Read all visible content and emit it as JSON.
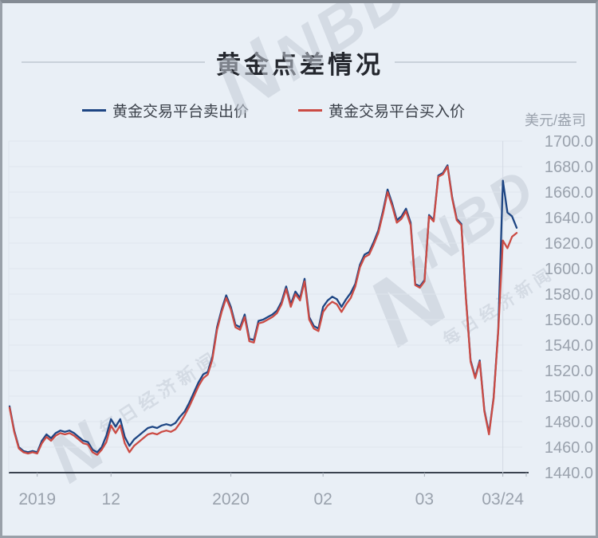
{
  "page": {
    "background": "#e9eff6",
    "frame_border": "#99a0a9"
  },
  "header": {
    "title": "黄金点差情况"
  },
  "watermark": {
    "brand": "NBD",
    "letter": "N",
    "name": "每日经济新闻"
  },
  "y_axis_unit": "美元/盎司",
  "chart_data": {
    "type": "line",
    "title": "黄金点差情况",
    "ylabel": "美元/盎司",
    "xlabel": "",
    "ylim": [
      1440,
      1700
    ],
    "grid": "horizontal",
    "legend_position": "top",
    "colors": {
      "grid_line": "#dee5ed",
      "axis_line": "#3a424f",
      "split_line": "#d3dae3",
      "tick_label": "#9aa2ad"
    },
    "y_ticks": [
      "1700.0",
      "1680.0",
      "1660.0",
      "1640.0",
      "1620.0",
      "1600.0",
      "1580.0",
      "1560.0",
      "1540.0",
      "1520.0",
      "1500.0",
      "1480.0",
      "1460.0",
      "1440.0"
    ],
    "x_ticks": [
      {
        "label": "2019",
        "index": 6
      },
      {
        "label": "12",
        "index": 22
      },
      {
        "label": "2020",
        "index": 48
      },
      {
        "label": "02",
        "index": 68
      },
      {
        "label": "03",
        "index": 90
      },
      {
        "label": "03/24",
        "index": 107,
        "gridline": true
      }
    ],
    "series": [
      {
        "name": "黄金交易平台卖出价",
        "color": "#1d4583",
        "values": [
          1492,
          1473,
          1460,
          1457,
          1456,
          1457,
          1456,
          1465,
          1470,
          1467,
          1471,
          1473,
          1472,
          1473,
          1471,
          1468,
          1465,
          1464,
          1458,
          1456,
          1460,
          1469,
          1482,
          1476,
          1482,
          1468,
          1461,
          1466,
          1469,
          1472,
          1475,
          1476,
          1475,
          1477,
          1478,
          1477,
          1479,
          1484,
          1488,
          1495,
          1503,
          1511,
          1517,
          1519,
          1531,
          1554,
          1568,
          1579,
          1570,
          1556,
          1554,
          1564,
          1545,
          1544,
          1559,
          1560,
          1562,
          1564,
          1567,
          1574,
          1586,
          1572,
          1582,
          1577,
          1592,
          1562,
          1555,
          1553,
          1570,
          1575,
          1578,
          1576,
          1570,
          1576,
          1581,
          1588,
          1603,
          1611,
          1613,
          1621,
          1630,
          1645,
          1662,
          1651,
          1638,
          1641,
          1647,
          1636,
          1588,
          1586,
          1591,
          1642,
          1638,
          1673,
          1675,
          1681,
          1656,
          1639,
          1635,
          1577,
          1528,
          1515,
          1528,
          1489,
          1471,
          1499,
          1552,
          1669,
          1644,
          1641,
          1632
        ]
      },
      {
        "name": "黄金交易平台买入价",
        "color": "#cb4b44",
        "values": [
          1491,
          1472,
          1459,
          1456,
          1455,
          1456,
          1455,
          1463,
          1468,
          1465,
          1469,
          1471,
          1470,
          1471,
          1469,
          1466,
          1463,
          1462,
          1456,
          1454,
          1458,
          1464,
          1477,
          1471,
          1477,
          1463,
          1456,
          1461,
          1464,
          1467,
          1470,
          1471,
          1470,
          1472,
          1473,
          1472,
          1474,
          1479,
          1485,
          1492,
          1500,
          1508,
          1514,
          1517,
          1529,
          1552,
          1566,
          1577,
          1568,
          1554,
          1552,
          1562,
          1543,
          1542,
          1557,
          1558,
          1560,
          1562,
          1565,
          1572,
          1584,
          1570,
          1580,
          1575,
          1590,
          1560,
          1553,
          1551,
          1566,
          1571,
          1574,
          1572,
          1566,
          1572,
          1577,
          1586,
          1601,
          1609,
          1611,
          1619,
          1628,
          1643,
          1660,
          1649,
          1636,
          1639,
          1645,
          1634,
          1587,
          1585,
          1590,
          1641,
          1637,
          1672,
          1674,
          1680,
          1655,
          1638,
          1634,
          1576,
          1527,
          1514,
          1527,
          1488,
          1470,
          1498,
          1551,
          1622,
          1616,
          1625,
          1628
        ]
      }
    ]
  }
}
